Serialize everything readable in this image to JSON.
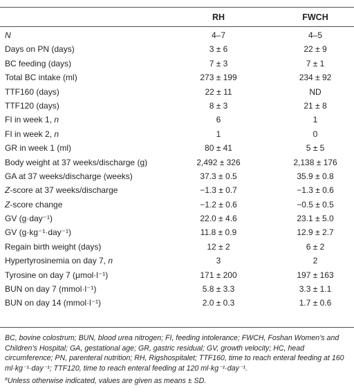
{
  "table": {
    "headers": [
      "RH",
      "FWCH"
    ],
    "rows": [
      {
        "pre": "",
        "it": "N",
        "post": "",
        "rh": "4–7",
        "fwch": "4–5"
      },
      {
        "pre": "Days on PN (days)",
        "it": "",
        "post": "",
        "rh": "3 ± 6",
        "fwch": "22 ± 9"
      },
      {
        "pre": "BC feeding (days)",
        "it": "",
        "post": "",
        "rh": "7 ± 3",
        "fwch": "7 ± 1"
      },
      {
        "pre": "Total BC intake (ml)",
        "it": "",
        "post": "",
        "rh": "273 ± 199",
        "fwch": "234 ± 92"
      },
      {
        "pre": "TTF160 (days)",
        "it": "",
        "post": "",
        "rh": "22 ± 11",
        "fwch": "ND"
      },
      {
        "pre": "TTF120 (days)",
        "it": "",
        "post": "",
        "rh": "8 ± 3",
        "fwch": "21 ± 8"
      },
      {
        "pre": "FI in week 1, ",
        "it": "n",
        "post": "",
        "rh": "6",
        "fwch": "1"
      },
      {
        "pre": "FI in week 2, ",
        "it": "n",
        "post": "",
        "rh": "1",
        "fwch": "0"
      },
      {
        "pre": "GR in week 1 (ml)",
        "it": "",
        "post": "",
        "rh": "80 ± 41",
        "fwch": "5 ± 5"
      },
      {
        "pre": "Body weight at 37 weeks/discharge (g)",
        "it": "",
        "post": "",
        "rh": "2,492 ± 326",
        "fwch": "2,138 ± 176"
      },
      {
        "pre": "GA at 37 weeks/discharge (weeks)",
        "it": "",
        "post": "",
        "rh": "37.3 ± 0.5",
        "fwch": "35.9 ± 0.8"
      },
      {
        "pre": "",
        "it": "Z",
        "post": "-score at 37 weeks/discharge",
        "rh": "−1.3 ± 0.7",
        "fwch": "−1.3 ± 0.6"
      },
      {
        "pre": "",
        "it": "Z",
        "post": "-score change",
        "rh": "−1.2 ± 0.6",
        "fwch": "−0.5 ± 0.5"
      },
      {
        "pre": "GV (g·day⁻¹)",
        "it": "",
        "post": "",
        "rh": "22.0 ± 4.6",
        "fwch": "23.1 ± 5.0"
      },
      {
        "pre": "GV (g·kg⁻¹·day⁻¹)",
        "it": "",
        "post": "",
        "rh": "11.8 ± 0.9",
        "fwch": "12.9 ± 2.7"
      },
      {
        "pre": "Regain birth weight (days)",
        "it": "",
        "post": "",
        "rh": "12 ± 2",
        "fwch": "6 ± 2"
      },
      {
        "pre": "Hypertyrosinemia on day 7, ",
        "it": "n",
        "post": "",
        "rh": "3",
        "fwch": "2"
      },
      {
        "pre": "Tyrosine on day 7 (μmol·l⁻¹)",
        "it": "",
        "post": "",
        "rh": "171 ± 200",
        "fwch": "197 ± 163"
      },
      {
        "pre": "BUN on day 7 (mmol·l⁻¹)",
        "it": "",
        "post": "",
        "rh": "5.8 ± 3.3",
        "fwch": "3.3 ± 1.1"
      },
      {
        "pre": "BUN on day 14 (mmol·l⁻¹)",
        "it": "",
        "post": "",
        "rh": "2.0 ± 0.3",
        "fwch": "1.7 ± 0.6"
      }
    ]
  },
  "footnote": {
    "abbreviations": "BC, bovine colostrum; BUN, blood urea nitrogen; FI, feeding intolerance; FWCH, Foshan Women’s and Children’s Hospital; GA, gestational age; GR, gastric residual; GV, growth velocity; HC, head circumference; PN, parenteral nutrition; RH, Rigshospitalet; TTF160, time to reach enteral feeding at 160 ml·kg⁻¹·day⁻¹; TTF120, time to reach enteral feeding at 120 ml·kg⁻¹·day⁻¹.",
    "note_mark": "a",
    "note_text": "Unless otherwise indicated, values are given as means ± SD."
  }
}
